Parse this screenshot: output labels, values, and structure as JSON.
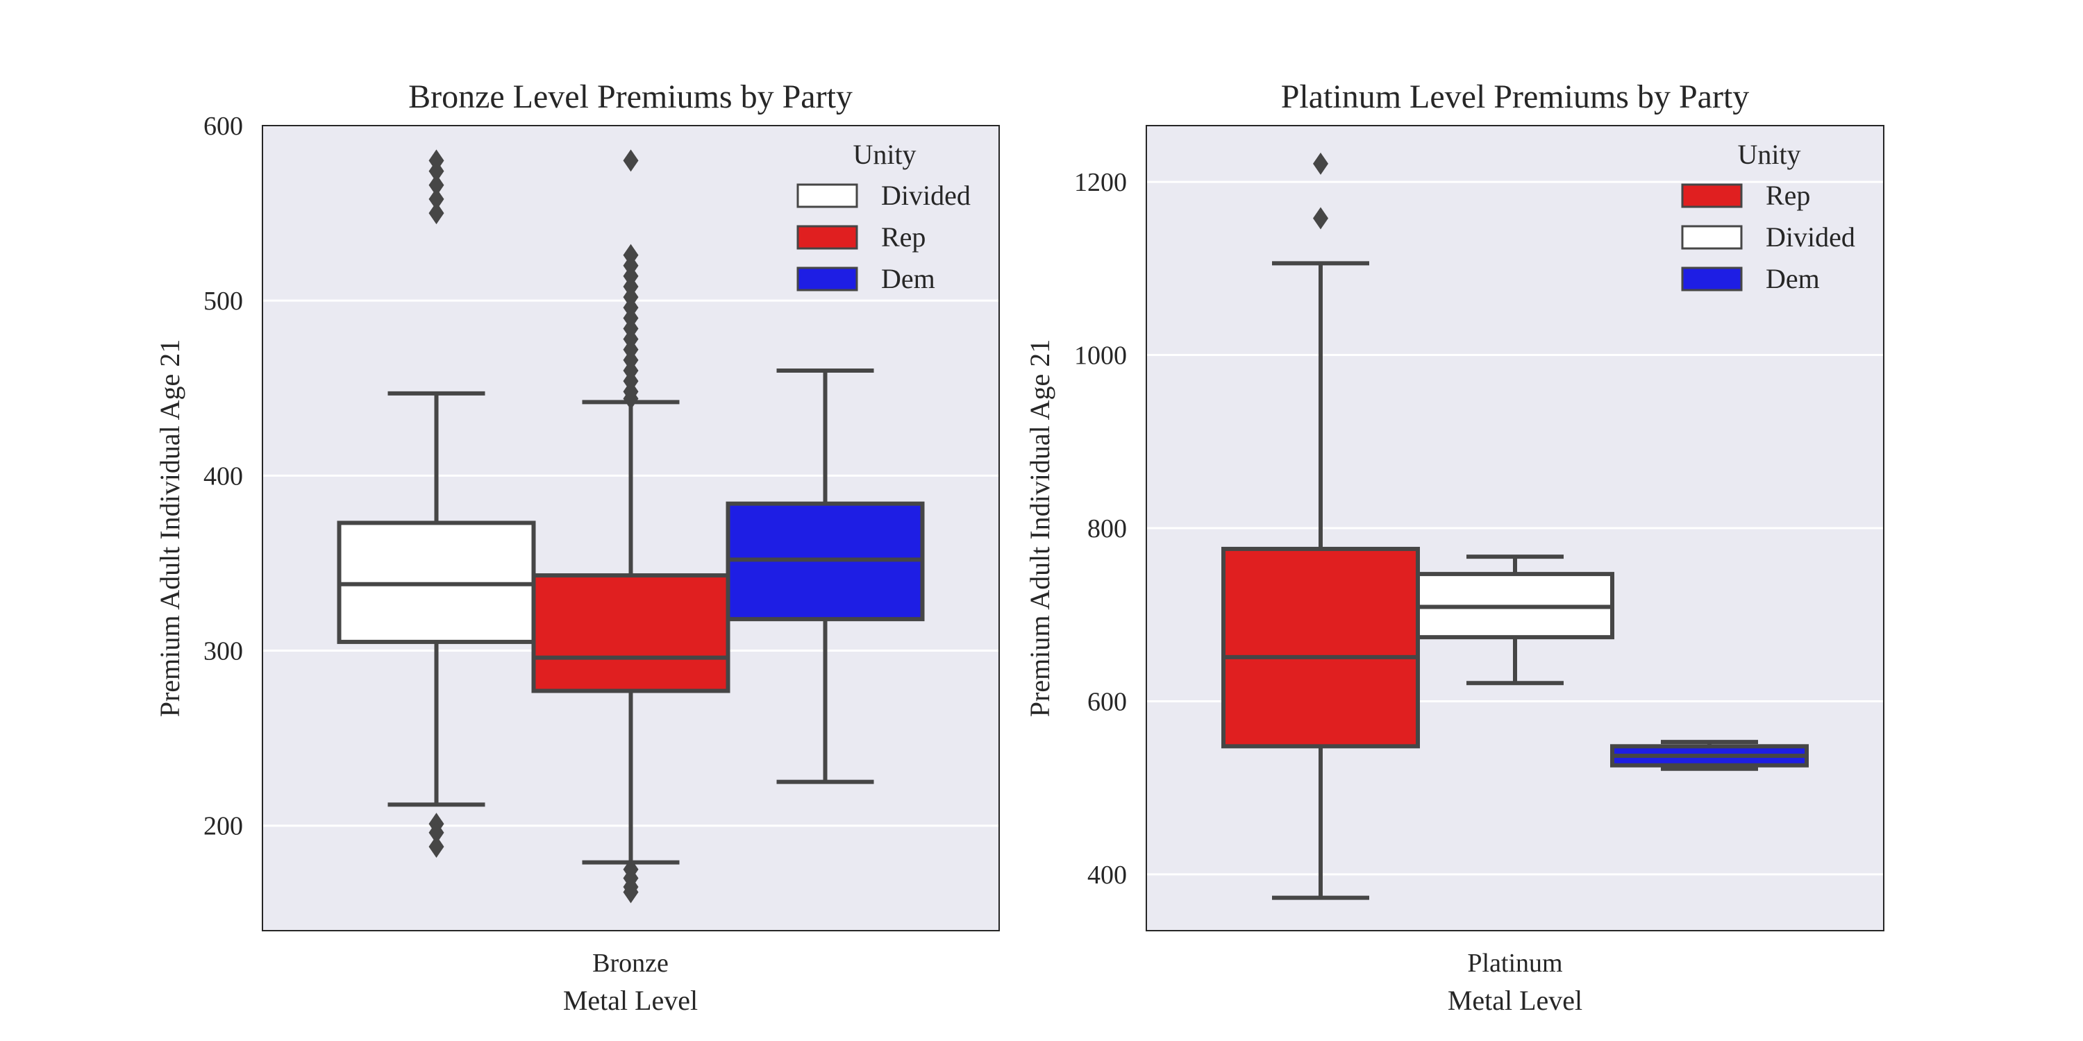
{
  "chart_data": [
    {
      "type": "box",
      "title": "Bronze Level Premiums by Party",
      "xlabel": "Metal Level",
      "ylabel": "Premium Adult Individual Age 21",
      "categories": [
        "Bronze"
      ],
      "ylim": [
        140,
        600
      ],
      "yticks": [
        200,
        300,
        400,
        500,
        600
      ],
      "grid": true,
      "legend": {
        "title": "Unity",
        "position": "top-right",
        "entries": [
          {
            "label": "Divided",
            "color": "#ffffff"
          },
          {
            "label": "Rep",
            "color": "#e01f20"
          },
          {
            "label": "Dem",
            "color": "#1e1ee4"
          }
        ]
      },
      "series": [
        {
          "name": "Divided",
          "color": "#ffffff",
          "q1": 305,
          "median": 338,
          "q3": 373,
          "whisker_low": 212,
          "whisker_high": 447,
          "outliers": [
            550,
            558,
            566,
            574,
            580,
            201,
            196,
            188
          ]
        },
        {
          "name": "Rep",
          "color": "#e01f20",
          "q1": 277,
          "median": 296,
          "q3": 343,
          "whisker_low": 179,
          "whisker_high": 442,
          "outliers": [
            580,
            526,
            520,
            514,
            508,
            502,
            496,
            490,
            484,
            478,
            472,
            466,
            460,
            454,
            448,
            444,
            175,
            170,
            165,
            162
          ]
        },
        {
          "name": "Dem",
          "color": "#1e1ee4",
          "q1": 318,
          "median": 352,
          "q3": 384,
          "whisker_low": 225,
          "whisker_high": 460,
          "outliers": []
        }
      ]
    },
    {
      "type": "box",
      "title": "Platinum Level Premiums by Party",
      "xlabel": "Metal Level",
      "ylabel": "Premium Adult Individual Age 21",
      "categories": [
        "Platinum"
      ],
      "ylim": [
        335,
        1265
      ],
      "yticks": [
        400,
        600,
        800,
        1000,
        1200
      ],
      "grid": true,
      "legend": {
        "title": "Unity",
        "position": "top-right",
        "entries": [
          {
            "label": "Rep",
            "color": "#e01f20"
          },
          {
            "label": "Divided",
            "color": "#ffffff"
          },
          {
            "label": "Dem",
            "color": "#1e1ee4"
          }
        ]
      },
      "series": [
        {
          "name": "Rep",
          "color": "#e01f20",
          "q1": 548,
          "median": 651,
          "q3": 776,
          "whisker_low": 373,
          "whisker_high": 1106,
          "outliers": [
            1221,
            1158
          ]
        },
        {
          "name": "Divided",
          "color": "#ffffff",
          "q1": 674,
          "median": 709,
          "q3": 747,
          "whisker_low": 621,
          "whisker_high": 767,
          "outliers": []
        },
        {
          "name": "Dem",
          "color": "#1e1ee4",
          "q1": 526,
          "median": 537,
          "q3": 548,
          "whisker_low": 522,
          "whisker_high": 553,
          "outliers": []
        }
      ]
    }
  ]
}
